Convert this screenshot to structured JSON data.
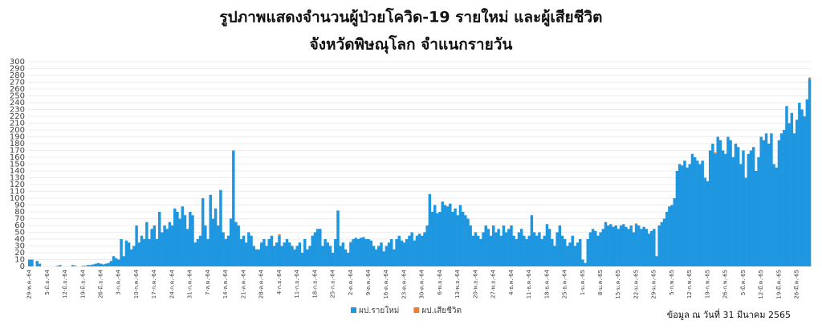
{
  "chart_data": {
    "type": "bar",
    "stacked": true,
    "title": "รูปภาพแสดงจำนวนผู้ป่วยโควิด-19 รายใหม่ และผู้เสียชีวิต",
    "subtitle": "จังหวัดพิษณุโลก จำแนกรายวัน",
    "note": "ข้อมูล ณ วันที่ 31 มีนาคม 2565",
    "grid": true,
    "legend": "bottom",
    "ylim": [
      0,
      300
    ],
    "yticks": [
      0,
      10,
      20,
      30,
      40,
      50,
      60,
      70,
      80,
      90,
      100,
      110,
      120,
      130,
      140,
      150,
      160,
      170,
      180,
      190,
      200,
      210,
      220,
      230,
      240,
      250,
      260,
      270,
      280,
      290,
      300
    ],
    "categories": [
      "29-พ.ค.-64",
      null,
      null,
      null,
      null,
      null,
      null,
      "5-มิ.ย.-64",
      null,
      null,
      null,
      null,
      null,
      null,
      "12-มิ.ย.-64",
      null,
      null,
      null,
      null,
      null,
      null,
      "19-มิ.ย.-64",
      null,
      null,
      null,
      null,
      null,
      null,
      "26-มิ.ย.-64",
      null,
      null,
      null,
      null,
      null,
      null,
      "3-ก.ค.-64",
      null,
      null,
      null,
      null,
      null,
      null,
      "10-ก.ค.-64",
      null,
      null,
      null,
      null,
      null,
      null,
      "17-ก.ค.-64",
      null,
      null,
      null,
      null,
      null,
      null,
      "24-ก.ค.-64",
      null,
      null,
      null,
      null,
      null,
      null,
      "31-ก.ค.-64",
      null,
      null,
      null,
      null,
      null,
      null,
      "7-ส.ค.-64",
      null,
      null,
      null,
      null,
      null,
      null,
      "14-ส.ค.-64",
      null,
      null,
      null,
      null,
      null,
      null,
      "21-ส.ค.-64",
      null,
      null,
      null,
      null,
      null,
      null,
      "28-ส.ค.-64",
      null,
      null,
      null,
      null,
      null,
      null,
      "4-ก.ย.-64",
      null,
      null,
      null,
      null,
      null,
      null,
      "11-ก.ย.-64",
      null,
      null,
      null,
      null,
      null,
      null,
      "18-ก.ย.-64",
      null,
      null,
      null,
      null,
      null,
      null,
      "25-ก.ย.-64",
      null,
      null,
      null,
      null,
      null,
      null,
      "2-ต.ค.-64",
      null,
      null,
      null,
      null,
      null,
      null,
      "9-ต.ค.-64",
      null,
      null,
      null,
      null,
      null,
      null,
      "16-ต.ค.-64",
      null,
      null,
      null,
      null,
      null,
      null,
      "23-ต.ค.-64",
      null,
      null,
      null,
      null,
      null,
      null,
      "30-ต.ค.-64",
      null,
      null,
      null,
      null,
      null,
      null,
      "6-พ.ย.-64",
      null,
      null,
      null,
      null,
      null,
      null,
      "13-พ.ย.-64",
      null,
      null,
      null,
      null,
      null,
      null,
      "20-พ.ย.-64",
      null,
      null,
      null,
      null,
      null,
      null,
      "27-พ.ย.-64",
      null,
      null,
      null,
      null,
      null,
      null,
      "4-ธ.ค.-64",
      null,
      null,
      null,
      null,
      null,
      null,
      "11-ธ.ค.-64",
      null,
      null,
      null,
      null,
      null,
      null,
      "18-ธ.ค.-64",
      null,
      null,
      null,
      null,
      null,
      null,
      "25-ธ.ค.-64",
      null,
      null,
      null,
      null,
      null,
      null,
      "1-ม.ค.-65",
      null,
      null,
      null,
      null,
      null,
      null,
      "8-ม.ค.-65",
      null,
      null,
      null,
      null,
      null,
      null,
      "15-ม.ค.-65",
      null,
      null,
      null,
      null,
      null,
      null,
      "22-ม.ค.-65",
      null,
      null,
      null,
      null,
      null,
      null,
      "29-ม.ค.-65",
      null,
      null,
      null,
      null,
      null,
      null,
      "5-ก.พ.-65",
      null,
      null,
      null,
      null,
      null,
      null,
      "12-ก.พ.-65",
      null,
      null,
      null,
      null,
      null,
      null,
      "19-ก.พ.-65",
      null,
      null,
      null,
      null,
      null,
      null,
      "26-ก.พ.-65",
      null,
      null,
      null,
      null,
      null,
      null,
      "5-มี.ค.-65",
      null,
      null,
      null,
      null,
      null,
      null,
      "12-มี.ค.-65",
      null,
      null,
      null,
      null,
      null,
      null,
      "19-มี.ค.-65",
      null,
      null,
      null,
      null,
      null,
      null,
      "26-มี.ค.-65",
      null,
      null,
      null,
      null,
      null
    ],
    "series": [
      {
        "name": "ผป.รายใหม่",
        "color": "#1f97e0",
        "values": [
          10,
          10,
          0,
          8,
          4,
          0,
          0,
          0,
          0,
          0,
          0,
          1,
          2,
          0,
          0,
          0,
          0,
          2,
          1,
          0,
          0,
          1,
          1,
          2,
          2,
          3,
          4,
          5,
          4,
          3,
          4,
          5,
          8,
          15,
          12,
          10,
          40,
          15,
          38,
          35,
          25,
          30,
          60,
          35,
          45,
          40,
          65,
          40,
          55,
          60,
          40,
          80,
          50,
          60,
          55,
          65,
          60,
          85,
          80,
          70,
          88,
          75,
          55,
          80,
          75,
          35,
          40,
          45,
          100,
          60,
          40,
          105,
          70,
          85,
          60,
          112,
          50,
          40,
          45,
          70,
          170,
          65,
          60,
          40,
          45,
          35,
          50,
          45,
          30,
          25,
          25,
          35,
          40,
          30,
          40,
          45,
          30,
          35,
          45,
          30,
          35,
          40,
          35,
          30,
          25,
          30,
          35,
          20,
          40,
          25,
          30,
          45,
          50,
          55,
          55,
          30,
          40,
          35,
          30,
          20,
          40,
          82,
          30,
          35,
          25,
          20,
          35,
          40,
          42,
          40,
          42,
          43,
          40,
          40,
          38,
          30,
          25,
          30,
          35,
          22,
          30,
          35,
          40,
          25,
          40,
          45,
          38,
          35,
          40,
          45,
          50,
          38,
          45,
          48,
          45,
          50,
          60,
          106,
          80,
          90,
          78,
          80,
          95,
          90,
          88,
          92,
          80,
          85,
          75,
          90,
          80,
          75,
          70,
          60,
          45,
          50,
          45,
          40,
          50,
          60,
          55,
          45,
          60,
          50,
          55,
          45,
          60,
          50,
          55,
          60,
          45,
          40,
          50,
          55,
          45,
          40,
          45,
          75,
          50,
          45,
          50,
          40,
          45,
          62,
          55,
          40,
          30,
          50,
          60,
          45,
          40,
          30,
          35,
          45,
          30,
          35,
          40,
          10,
          5,
          40,
          50,
          55,
          52,
          45,
          50,
          55,
          65,
          60,
          62,
          58,
          60,
          55,
          60,
          62,
          58,
          55,
          60,
          50,
          62,
          60,
          55,
          58,
          55,
          48,
          52,
          55,
          15,
          60,
          65,
          70,
          80,
          88,
          90,
          100,
          140,
          150,
          148,
          155,
          145,
          150,
          165,
          160,
          155,
          150,
          155,
          130,
          125,
          170,
          180,
          165,
          190,
          185,
          170,
          165,
          190,
          185,
          160,
          180,
          175,
          150,
          170,
          130,
          165,
          170,
          175,
          140,
          160,
          190,
          185,
          195,
          180,
          195,
          150,
          145,
          185,
          195,
          200,
          235,
          210,
          225,
          195,
          215,
          240,
          230,
          220,
          245,
          275
        ]
      },
      {
        "name": "ผป.เสียชีวิต",
        "color": "#ed7d31",
        "values": [
          0,
          0,
          0,
          0,
          0,
          0,
          0,
          0,
          0,
          0,
          0,
          0,
          0,
          0,
          0,
          0,
          0,
          0,
          0,
          0,
          0,
          0,
          0,
          0,
          0,
          0,
          0,
          0,
          0,
          0,
          0,
          0,
          0,
          0,
          0,
          0,
          0,
          0,
          0,
          0,
          0,
          0,
          0,
          0,
          0,
          0,
          0,
          0,
          0,
          0,
          0,
          0,
          0,
          0,
          0,
          0,
          0,
          0,
          0,
          0,
          0,
          0,
          0,
          0,
          0,
          0,
          0,
          0,
          0,
          0,
          0,
          0,
          0,
          0,
          0,
          0,
          0,
          0,
          0,
          0,
          0,
          0,
          0,
          0,
          0,
          0,
          0,
          0,
          0,
          0,
          0,
          0,
          0,
          0,
          0,
          0,
          0,
          0,
          2,
          0,
          0,
          0,
          0,
          0,
          0,
          0,
          0,
          0,
          0,
          0,
          0,
          0,
          0,
          0,
          0,
          0,
          0,
          0,
          0,
          0,
          0,
          0,
          0,
          0,
          0,
          0,
          1,
          0,
          0,
          0,
          0,
          0,
          0,
          0,
          0,
          0,
          0,
          0,
          0,
          0,
          0,
          0,
          0,
          0,
          0,
          0,
          0,
          0,
          0,
          0,
          0,
          0,
          0,
          0,
          0,
          0,
          0,
          0,
          0,
          0,
          0,
          0,
          0,
          0,
          0,
          0,
          0,
          0,
          0,
          0,
          0,
          0,
          0,
          0,
          0,
          0,
          0,
          0,
          0,
          0,
          0,
          0,
          0,
          0,
          0,
          0,
          0,
          0,
          0,
          0,
          0,
          0,
          0,
          0,
          0,
          0,
          0,
          0,
          0,
          0,
          0,
          0,
          0,
          0,
          0,
          0,
          0,
          0,
          0,
          0,
          0,
          0,
          0,
          0,
          0,
          0,
          0,
          0,
          0,
          0,
          0,
          0,
          0,
          0,
          0,
          0,
          0,
          0,
          0,
          0,
          0,
          0,
          0,
          0,
          0,
          0,
          0,
          0,
          1,
          0,
          0,
          0,
          0,
          0,
          0,
          0,
          0,
          0,
          0,
          0,
          0,
          0,
          0,
          0,
          0,
          0,
          0,
          0,
          0,
          0,
          0,
          0,
          0,
          0,
          0,
          0,
          0,
          0,
          0,
          2,
          0,
          0,
          0,
          0,
          0,
          0,
          0,
          0,
          0,
          0,
          0,
          0,
          0,
          0,
          0,
          0,
          0,
          0,
          0,
          0,
          0,
          0,
          0,
          0,
          0,
          0,
          0,
          0,
          0,
          0,
          0,
          0,
          0,
          0,
          0,
          0,
          2
        ]
      }
    ]
  }
}
